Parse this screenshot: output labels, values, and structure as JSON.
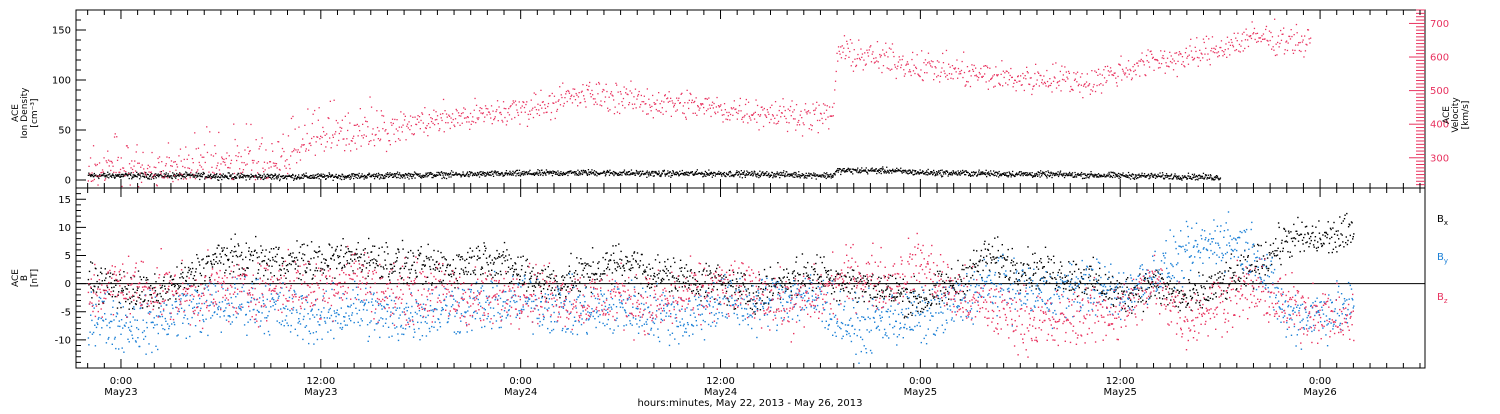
{
  "colors": {
    "black": "#000000",
    "pink": "#e8325f",
    "blue": "#1a7fd6"
  },
  "chart_data": [
    {
      "type": "scatter",
      "panel": "plasma",
      "ylabel_left": [
        "ACE",
        "Ion Density",
        "[cm⁻³]"
      ],
      "ylabel_right": [
        "ACE",
        "Velocity",
        "[km/s]"
      ],
      "ylim_left": [
        0,
        170
      ],
      "ylim_right": [
        210,
        740
      ],
      "yticks_left": [
        "0",
        "50",
        "100",
        "150"
      ],
      "yticks_right": [
        "300",
        "400",
        "500",
        "600",
        "700"
      ],
      "series": [
        {
          "color": "black",
          "axis": "left",
          "knots": [
            [
              -2,
              5
            ],
            [
              4,
              5
            ],
            [
              8,
              4
            ],
            [
              12,
              4
            ],
            [
              16,
              5
            ],
            [
              20,
              6
            ],
            [
              24,
              7
            ],
            [
              28,
              8
            ],
            [
              32,
              7
            ],
            [
              36,
              7
            ],
            [
              40,
              6
            ],
            [
              42.7,
              5
            ],
            [
              43,
              10
            ],
            [
              46,
              10
            ],
            [
              48,
              8
            ],
            [
              52,
              7
            ],
            [
              56,
              6
            ],
            [
              60,
              5
            ],
            [
              64,
              4
            ],
            [
              66,
              3
            ]
          ],
          "noise": 1.5,
          "start": -2,
          "end": 66
        },
        {
          "color": "pink",
          "axis": "right",
          "knots": [
            [
              -2,
              265
            ],
            [
              0,
              275
            ],
            [
              2,
              265
            ],
            [
              4,
              270
            ],
            [
              6,
              275
            ],
            [
              8,
              285
            ],
            [
              10,
              300
            ],
            [
              12,
              360
            ],
            [
              14,
              375
            ],
            [
              16,
              380
            ],
            [
              18,
              410
            ],
            [
              20,
              420
            ],
            [
              22,
              430
            ],
            [
              24,
              445
            ],
            [
              26,
              470
            ],
            [
              28,
              490
            ],
            [
              30,
              480
            ],
            [
              32,
              465
            ],
            [
              34,
              460
            ],
            [
              36,
              445
            ],
            [
              38,
              440
            ],
            [
              40,
              430
            ],
            [
              42.7,
              425
            ],
            [
              43,
              620
            ],
            [
              45,
              600
            ],
            [
              48,
              575
            ],
            [
              50,
              560
            ],
            [
              52,
              545
            ],
            [
              54,
              535
            ],
            [
              56,
              540
            ],
            [
              58,
              525
            ],
            [
              60,
              560
            ],
            [
              62,
              590
            ],
            [
              64,
              600
            ],
            [
              66,
              630
            ],
            [
              68,
              660
            ],
            [
              70,
              655
            ],
            [
              71.4,
              640
            ]
          ],
          "noise": 22,
          "start": -2,
          "end": 71.4
        }
      ]
    },
    {
      "type": "scatter",
      "panel": "magnetic",
      "ylabel_left": [
        "ACE",
        "B",
        "[nT]"
      ],
      "ylim": [
        -15,
        17
      ],
      "yticks": [
        "-10",
        "-5",
        "0",
        "5",
        "10",
        "15"
      ],
      "legend": [
        {
          "label": "B",
          "sub": "x",
          "color": "black"
        },
        {
          "label": "B",
          "sub": "y",
          "color": "blue"
        },
        {
          "label": "B",
          "sub": "z",
          "color": "pink"
        }
      ],
      "series": [
        {
          "color": "black",
          "knots": [
            [
              -2,
              1
            ],
            [
              0,
              -1
            ],
            [
              2,
              -2
            ],
            [
              4,
              1
            ],
            [
              6,
              5
            ],
            [
              8,
              4
            ],
            [
              10,
              4
            ],
            [
              12,
              4
            ],
            [
              14,
              5
            ],
            [
              16,
              4
            ],
            [
              18,
              3
            ],
            [
              20,
              3
            ],
            [
              22,
              5
            ],
            [
              24,
              2
            ],
            [
              26,
              0
            ],
            [
              28,
              2
            ],
            [
              30,
              4
            ],
            [
              32,
              2
            ],
            [
              34,
              1
            ],
            [
              36,
              0
            ],
            [
              38,
              -2
            ],
            [
              40,
              1
            ],
            [
              42,
              2
            ],
            [
              44,
              0
            ],
            [
              46,
              -1
            ],
            [
              48,
              -3
            ],
            [
              50,
              0
            ],
            [
              52,
              5
            ],
            [
              54,
              3
            ],
            [
              56,
              2
            ],
            [
              58,
              1
            ],
            [
              60,
              -2
            ],
            [
              62,
              0
            ],
            [
              64,
              -3
            ],
            [
              66,
              0
            ],
            [
              68,
              3
            ],
            [
              70,
              8
            ],
            [
              72,
              8
            ],
            [
              74,
              9
            ]
          ],
          "noise": 1.7,
          "start": -2,
          "end": 74
        },
        {
          "color": "blue",
          "knots": [
            [
              -2,
              -5
            ],
            [
              0,
              -7
            ],
            [
              2,
              -7
            ],
            [
              4,
              -4
            ],
            [
              6,
              -4
            ],
            [
              8,
              -3
            ],
            [
              10,
              -5
            ],
            [
              12,
              -6
            ],
            [
              14,
              -4
            ],
            [
              16,
              -6
            ],
            [
              18,
              -5
            ],
            [
              20,
              -4
            ],
            [
              22,
              -4
            ],
            [
              24,
              -3
            ],
            [
              26,
              -4
            ],
            [
              28,
              -5
            ],
            [
              30,
              -4
            ],
            [
              32,
              -5
            ],
            [
              34,
              -6
            ],
            [
              36,
              -3
            ],
            [
              38,
              -4
            ],
            [
              40,
              -2
            ],
            [
              42,
              -3
            ],
            [
              44,
              -8
            ],
            [
              46,
              -6
            ],
            [
              48,
              -6
            ],
            [
              50,
              -4
            ],
            [
              52,
              0
            ],
            [
              54,
              -1
            ],
            [
              56,
              -2
            ],
            [
              58,
              0
            ],
            [
              60,
              -2
            ],
            [
              62,
              2
            ],
            [
              64,
              5
            ],
            [
              66,
              8
            ],
            [
              68,
              6
            ],
            [
              70,
              -6
            ],
            [
              72,
              -5
            ],
            [
              74,
              -4
            ]
          ],
          "noise": 2.4,
          "start": -2,
          "end": 74
        },
        {
          "color": "pink",
          "knots": [
            [
              -2,
              -2
            ],
            [
              0,
              0
            ],
            [
              2,
              -1
            ],
            [
              4,
              -2
            ],
            [
              6,
              -1
            ],
            [
              8,
              -1
            ],
            [
              10,
              0
            ],
            [
              12,
              -1
            ],
            [
              14,
              2
            ],
            [
              16,
              -2
            ],
            [
              18,
              -1
            ],
            [
              20,
              -2
            ],
            [
              22,
              -3
            ],
            [
              24,
              -1
            ],
            [
              26,
              -2
            ],
            [
              28,
              -3
            ],
            [
              30,
              -2
            ],
            [
              32,
              -4
            ],
            [
              34,
              -2
            ],
            [
              36,
              -1
            ],
            [
              38,
              -1
            ],
            [
              40,
              -4
            ],
            [
              42,
              -2
            ],
            [
              44,
              2
            ],
            [
              46,
              0
            ],
            [
              48,
              4
            ],
            [
              50,
              -2
            ],
            [
              52,
              -4
            ],
            [
              54,
              -6
            ],
            [
              56,
              -7
            ],
            [
              58,
              -5
            ],
            [
              60,
              -5
            ],
            [
              62,
              0
            ],
            [
              64,
              -6
            ],
            [
              66,
              -3
            ],
            [
              68,
              -1
            ],
            [
              70,
              -4
            ],
            [
              72,
              -5
            ],
            [
              74,
              -7
            ]
          ],
          "noise": 2.6,
          "start": -2,
          "end": 74
        }
      ]
    }
  ],
  "x_axis": {
    "range_hours": [
      -2.7,
      78.3
    ],
    "major_ticks": [
      {
        "h": 0,
        "time": "0:00",
        "date": "May23"
      },
      {
        "h": 12,
        "time": "12:00",
        "date": "May23"
      },
      {
        "h": 24,
        "time": "0:00",
        "date": "May24"
      },
      {
        "h": 36,
        "time": "12:00",
        "date": "May24"
      },
      {
        "h": 48,
        "time": "0:00",
        "date": "May25"
      },
      {
        "h": 60,
        "time": "12:00",
        "date": "May25"
      },
      {
        "h": 72,
        "time": "0:00",
        "date": "May26"
      }
    ],
    "label": "hours:minutes, May 22, 2013 - May 26, 2013"
  }
}
